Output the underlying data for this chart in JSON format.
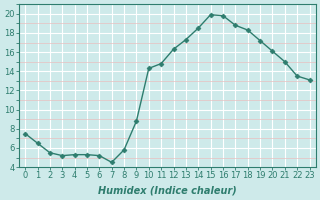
{
  "x": [
    0,
    1,
    2,
    3,
    4,
    5,
    6,
    7,
    8,
    9,
    10,
    11,
    12,
    13,
    14,
    15,
    16,
    17,
    18,
    19,
    20,
    21,
    22,
    23
  ],
  "y": [
    7.5,
    6.5,
    5.5,
    5.2,
    5.3,
    5.3,
    5.2,
    4.5,
    5.8,
    8.8,
    14.3,
    14.8,
    16.3,
    17.3,
    18.5,
    19.9,
    19.8,
    18.8,
    18.3,
    17.2,
    16.1,
    15.0,
    13.5,
    13.1
  ],
  "line_color": "#2e7d6e",
  "marker": "D",
  "marker_size": 2.5,
  "bg_color": "#ceeaea",
  "grid_major_color": "#ffffff",
  "grid_minor_color": "#e8c0c0",
  "xlabel": "Humidex (Indice chaleur)",
  "ylim": [
    4,
    21
  ],
  "xlim": [
    -0.5,
    23.5
  ],
  "yticks": [
    4,
    6,
    8,
    10,
    12,
    14,
    16,
    18,
    20
  ],
  "xticks": [
    0,
    1,
    2,
    3,
    4,
    5,
    6,
    7,
    8,
    9,
    10,
    11,
    12,
    13,
    14,
    15,
    16,
    17,
    18,
    19,
    20,
    21,
    22,
    23
  ],
  "tick_color": "#2e7d6e",
  "label_fontsize": 7,
  "tick_fontsize": 6
}
